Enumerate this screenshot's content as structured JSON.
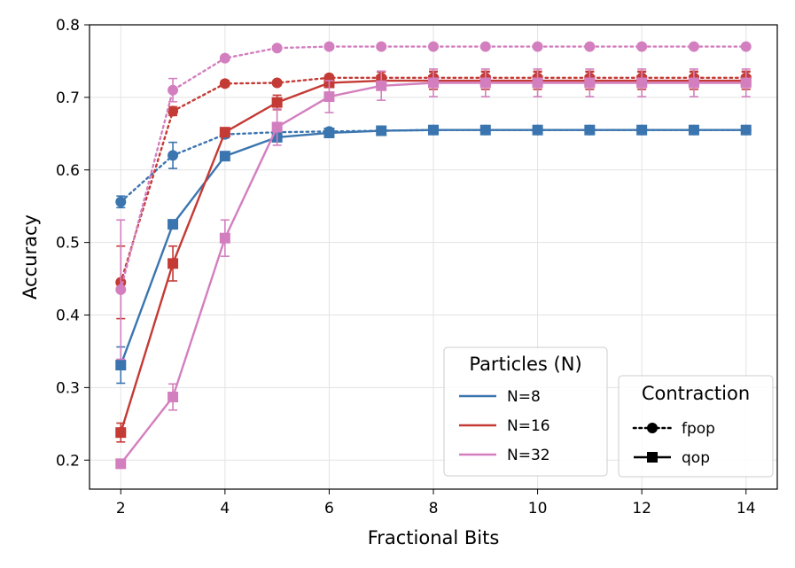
{
  "chart_data": {
    "type": "line",
    "xlabel": "Fractional Bits",
    "ylabel": "Accuracy",
    "xlim": [
      1.4,
      14.6
    ],
    "ylim": [
      0.16,
      0.8
    ],
    "xticks": [
      2,
      4,
      6,
      8,
      10,
      12,
      14
    ],
    "yticks": [
      0.2,
      0.3,
      0.4,
      0.5,
      0.6,
      0.7,
      0.8
    ],
    "x": [
      2,
      3,
      4,
      5,
      6,
      7,
      8,
      9,
      10,
      11,
      12,
      13,
      14
    ],
    "grid": true,
    "series": [
      {
        "name": "N=8 fpop",
        "particles": "N=8",
        "contraction": "fpop",
        "color": "#3b75af",
        "style": "dotted",
        "marker": "circle",
        "values": [
          0.556,
          0.62,
          0.649,
          0.652,
          0.653,
          0.654,
          0.655,
          0.655,
          0.655,
          0.655,
          0.655,
          0.655,
          0.655
        ],
        "errors": [
          0.008,
          0.018,
          0.005,
          0.003,
          0.002,
          0.001,
          0.001,
          0.001,
          0.001,
          0.001,
          0.001,
          0.001,
          0.001
        ]
      },
      {
        "name": "N=8 qop",
        "particles": "N=8",
        "contraction": "qop",
        "color": "#3b75af",
        "style": "solid",
        "marker": "square",
        "values": [
          0.331,
          0.525,
          0.619,
          0.645,
          0.651,
          0.654,
          0.655,
          0.655,
          0.655,
          0.655,
          0.655,
          0.655,
          0.655
        ],
        "errors": [
          0.025,
          0.006,
          0.004,
          0.003,
          0.003,
          0.001,
          0.001,
          0.001,
          0.001,
          0.001,
          0.001,
          0.001,
          0.001
        ]
      },
      {
        "name": "N=16 fpop",
        "particles": "N=16",
        "contraction": "fpop",
        "color": "#c43a35",
        "style": "dotted",
        "marker": "circle",
        "values": [
          0.445,
          0.681,
          0.719,
          0.72,
          0.727,
          0.727,
          0.727,
          0.727,
          0.727,
          0.727,
          0.727,
          0.727,
          0.727
        ],
        "errors": [
          0.05,
          0.006,
          0.004,
          0.003,
          0.004,
          0.009,
          0.009,
          0.009,
          0.009,
          0.009,
          0.009,
          0.009,
          0.009
        ]
      },
      {
        "name": "N=16 qop",
        "particles": "N=16",
        "contraction": "qop",
        "color": "#c43a35",
        "style": "solid",
        "marker": "square",
        "values": [
          0.238,
          0.471,
          0.652,
          0.693,
          0.72,
          0.723,
          0.723,
          0.723,
          0.723,
          0.723,
          0.723,
          0.723,
          0.723
        ],
        "errors": [
          0.013,
          0.024,
          0.005,
          0.01,
          0.006,
          0.012,
          0.012,
          0.012,
          0.012,
          0.012,
          0.012,
          0.012,
          0.012
        ]
      },
      {
        "name": "N=32 fpop",
        "particles": "N=32",
        "contraction": "fpop",
        "color": "#d37fbf",
        "style": "dotted",
        "marker": "circle",
        "values": [
          0.435,
          0.71,
          0.754,
          0.768,
          0.77,
          0.77,
          0.77,
          0.77,
          0.77,
          0.77,
          0.77,
          0.77,
          0.77
        ],
        "errors": [
          0.096,
          0.016,
          0.003,
          0.002,
          0.002,
          0.001,
          0.001,
          0.001,
          0.001,
          0.001,
          0.001,
          0.001,
          0.001
        ]
      },
      {
        "name": "N=32 qop",
        "particles": "N=32",
        "contraction": "qop",
        "color": "#d37fbf",
        "style": "solid",
        "marker": "square",
        "values": [
          0.195,
          0.287,
          0.506,
          0.659,
          0.701,
          0.716,
          0.72,
          0.72,
          0.72,
          0.72,
          0.72,
          0.72,
          0.72
        ],
        "errors": [
          0.003,
          0.018,
          0.025,
          0.025,
          0.022,
          0.02,
          0.019,
          0.019,
          0.019,
          0.019,
          0.019,
          0.019,
          0.019
        ]
      }
    ],
    "legends": [
      {
        "title": "Particles (N)",
        "placement": "lower-middle",
        "entries": [
          {
            "label": "N=8",
            "color": "#3b75af",
            "style": "solid",
            "marker": "none"
          },
          {
            "label": "N=16",
            "color": "#c43a35",
            "style": "solid",
            "marker": "none"
          },
          {
            "label": "N=32",
            "color": "#d37fbf",
            "style": "solid",
            "marker": "none"
          }
        ]
      },
      {
        "title": "Contraction",
        "placement": "lower-right",
        "entries": [
          {
            "label": "fpop",
            "color": "#000000",
            "style": "dotted",
            "marker": "circle"
          },
          {
            "label": "qop",
            "color": "#000000",
            "style": "solid",
            "marker": "square"
          }
        ]
      }
    ]
  }
}
